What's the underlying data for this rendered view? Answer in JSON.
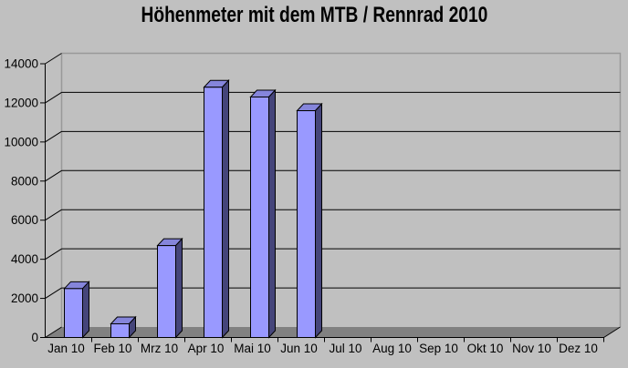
{
  "chart_data": {
    "type": "bar",
    "style": "excel-3d-column",
    "title": "Höhenmeter mit dem MTB / Rennrad 2010",
    "categories": [
      "Jan 10",
      "Feb 10",
      "Mrz 10",
      "Apr 10",
      "Mai 10",
      "Jun 10",
      "Jul 10",
      "Aug 10",
      "Sep 10",
      "Okt 10",
      "Nov 10",
      "Dez 10"
    ],
    "values": [
      2500,
      700,
      4700,
      12800,
      12300,
      11600,
      0,
      0,
      0,
      0,
      0,
      0
    ],
    "xlabel": "",
    "ylabel": "",
    "ylim": [
      0,
      14000
    ],
    "ytick_step": 2000,
    "ytick_labels": [
      "0",
      "2000",
      "4000",
      "6000",
      "8000",
      "10000",
      "12000",
      "14000"
    ],
    "grid": true,
    "legend": false,
    "colors": {
      "background": "#C0C0C0",
      "bar_front": "#9999FF",
      "bar_top": "#8585DB",
      "bar_side": "#45457A",
      "bar_outline": "#000000",
      "floor": "#818181",
      "wall_edge": "#999999",
      "gridline": "#000000",
      "axis": "#000000",
      "text": "#000000"
    }
  }
}
